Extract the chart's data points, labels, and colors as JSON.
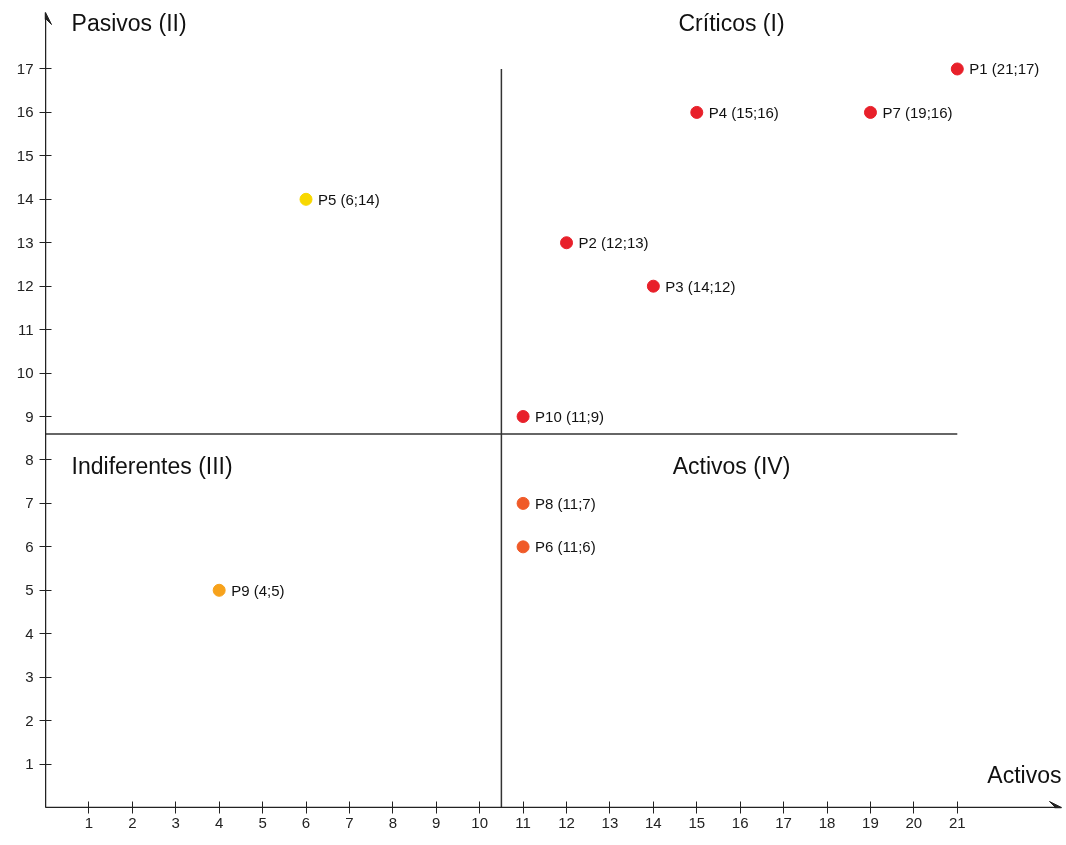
{
  "chart_data": {
    "type": "scatter",
    "xlabel": "Activos",
    "x": [
      21,
      12,
      14,
      15,
      6,
      11,
      19,
      11,
      4,
      11
    ],
    "values": [
      17,
      13,
      12,
      16,
      14,
      6,
      16,
      7,
      5,
      9
    ],
    "colors": [
      "#e8202a",
      "#e8202a",
      "#e8202a",
      "#e8202a",
      "#f8d800",
      "#f05a28",
      "#e8202a",
      "#f05a28",
      "#f7a21b",
      "#e8202a"
    ],
    "value_labels": [
      "P1 (21;17)",
      "P2 (12;13)",
      "P3 (14;12)",
      "P4 (15;16)",
      "P5 (6;14)",
      "P6 (11;6)",
      "P7 (19;16)",
      "P8 (11;7)",
      "P9 (4;5)",
      "P10 (11;9)"
    ],
    "annotations": [
      "Pasivos (II)",
      "Críticos (I)",
      "Indiferentes (III)",
      "Activos (IV)"
    ],
    "ref_lines": [
      {
        "axis": "x",
        "value": 10.5,
        "color": "#333333"
      },
      {
        "axis": "y",
        "value": 8.6,
        "color": "#333333"
      }
    ],
    "xlim": [
      0,
      23.4
    ],
    "ylim": [
      0,
      18.3
    ],
    "xticks": [
      1,
      2,
      3,
      4,
      5,
      6,
      7,
      8,
      9,
      10,
      11,
      12,
      13,
      14,
      15,
      16,
      17,
      18,
      19,
      20,
      21
    ],
    "yticks": [
      1,
      2,
      3,
      4,
      5,
      6,
      7,
      8,
      9,
      10,
      11,
      12,
      13,
      14,
      15,
      16,
      17
    ],
    "grid": false,
    "marker": "circle"
  }
}
